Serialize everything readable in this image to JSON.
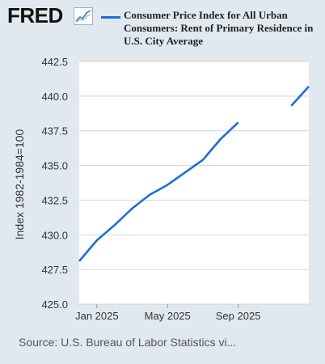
{
  "header": {
    "logo_text": "FRED",
    "logo_icon": "trend-line-icon"
  },
  "footer": {
    "source": "Source: U.S. Bureau of Labor Statistics vi..."
  },
  "colors": {
    "background": "#e1e9f0",
    "plot_area": "#ffffff",
    "series": "#1d6fd8",
    "grid": "#d4d4d4"
  },
  "chart_data": {
    "type": "line",
    "title": "",
    "xlabel": "",
    "ylabel": "Index 1982-1984=100",
    "ylim": [
      425.0,
      442.5
    ],
    "yticks": [
      "425.0",
      "427.5",
      "430.0",
      "432.5",
      "435.0",
      "437.5",
      "440.0",
      "442.5"
    ],
    "xticks": [
      "Jan 2025",
      "May 2025",
      "Sep 2025"
    ],
    "grid": "horizontal",
    "legend_position": "top",
    "series": [
      {
        "name": "Consumer Price Index for All Urban Consumers: Rent of Primary Residence in U.S. City Average",
        "x": [
          "2024-12",
          "2025-01",
          "2025-02",
          "2025-03",
          "2025-04",
          "2025-05",
          "2025-06",
          "2025-07",
          "2025-08",
          "2025-09",
          "2025-10",
          "2025-11",
          "2025-12",
          "2026-01"
        ],
        "values": [
          428.1,
          429.6,
          430.7,
          431.9,
          432.9,
          433.6,
          434.5,
          435.4,
          436.9,
          438.1,
          null,
          null,
          439.3,
          440.7
        ]
      }
    ]
  }
}
